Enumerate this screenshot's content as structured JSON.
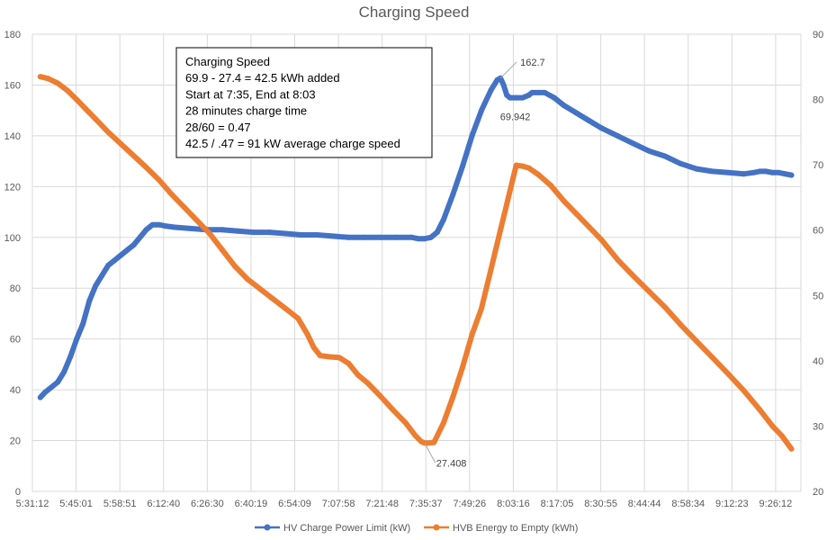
{
  "chart_data": {
    "type": "line",
    "title": "Charging Speed",
    "xlabel": "",
    "ylabel": "",
    "y2label": "",
    "x_tick_labels": [
      "5:31:12",
      "5:45:01",
      "5:58:51",
      "6:12:40",
      "6:26:30",
      "6:40:19",
      "6:54:09",
      "7:07:58",
      "7:21:48",
      "7:35:37",
      "7:49:26",
      "8:03:16",
      "8:17:05",
      "8:30:55",
      "8:44:44",
      "8:58:34",
      "9:12:23",
      "9:26:12"
    ],
    "x_tick_minutes": [
      0,
      13.82,
      27.65,
      41.47,
      55.3,
      69.12,
      82.95,
      96.77,
      110.6,
      124.42,
      138.23,
      152.07,
      165.88,
      179.72,
      193.53,
      207.37,
      221.18,
      235.0
    ],
    "xlim": [
      0,
      243
    ],
    "ylim": [
      0,
      180
    ],
    "y_ticks": [
      0,
      20,
      40,
      60,
      80,
      100,
      120,
      140,
      160,
      180
    ],
    "y2lim": [
      20,
      90
    ],
    "y2_ticks": [
      20,
      30,
      40,
      50,
      60,
      70,
      80,
      90
    ],
    "grid": true,
    "legend_position": "bottom",
    "series": [
      {
        "name": "HV Charge Power Limit (kW)",
        "axis": "left",
        "color": "#4472C4",
        "x": [
          2.5,
          4,
          6,
          8,
          10,
          12,
          14,
          16,
          18,
          20,
          22,
          24,
          26,
          28,
          30,
          32,
          34,
          36,
          37,
          38,
          39,
          40,
          42,
          45,
          50,
          55,
          60,
          65,
          70,
          75,
          80,
          85,
          90,
          95,
          100,
          105,
          110,
          115,
          120,
          122,
          124,
          126,
          128,
          130,
          133,
          136,
          139,
          142,
          145,
          147,
          148,
          149,
          150,
          151,
          152,
          153,
          155,
          157,
          158,
          160,
          162,
          165,
          168,
          172,
          176,
          180,
          185,
          190,
          195,
          200,
          205,
          210,
          215,
          220,
          225,
          228,
          230,
          232,
          234,
          236,
          238,
          240
        ],
        "values": [
          37,
          39,
          41,
          43,
          47,
          53,
          60,
          66,
          75,
          81,
          85,
          89,
          91,
          93,
          95,
          97,
          100,
          103,
          104,
          105,
          105,
          105,
          104.5,
          104,
          103.5,
          103,
          103,
          102.5,
          102,
          102,
          101.5,
          101,
          101,
          100.5,
          100,
          100,
          100,
          100,
          100,
          99.5,
          99.5,
          100,
          102,
          107,
          117,
          128,
          140,
          150,
          158,
          162,
          162.7,
          160,
          156,
          155,
          155,
          155,
          155,
          156,
          157,
          157,
          157,
          155,
          152,
          149,
          146,
          143,
          140,
          137,
          134,
          132,
          129,
          127,
          126,
          125.5,
          125,
          125.5,
          126,
          126,
          125.5,
          125.5,
          125,
          124.5
        ]
      },
      {
        "name": "HVB Energy to Empty (kWh)",
        "axis": "right",
        "color": "#ED7D31",
        "x": [
          2.5,
          5,
          8,
          11,
          14,
          17,
          20,
          24,
          28,
          32,
          36,
          40,
          44,
          48,
          52,
          56,
          60,
          64,
          68,
          72,
          76,
          80,
          84,
          87,
          89,
          91,
          94,
          97,
          100,
          103,
          106,
          110,
          114,
          118,
          121,
          123,
          124,
          125,
          127,
          130,
          133,
          136,
          139,
          142,
          145,
          148,
          150,
          152,
          153,
          155,
          157,
          160,
          164,
          168,
          172,
          176,
          180,
          185,
          190,
          195,
          200,
          205,
          210,
          215,
          220,
          225,
          230,
          234,
          237,
          240
        ],
        "values": [
          83.5,
          83.2,
          82.5,
          81.4,
          80,
          78.5,
          77,
          75,
          73.2,
          71.4,
          69.6,
          67.7,
          65.5,
          63.5,
          61.5,
          59.5,
          57,
          54.5,
          52.5,
          51,
          49.5,
          48,
          46.5,
          44,
          42,
          40.8,
          40.6,
          40.5,
          39.6,
          37.8,
          36.6,
          34.6,
          32.5,
          30.5,
          28.6,
          27.6,
          27.4,
          27.4,
          27.5,
          30.5,
          34.5,
          39,
          44,
          48,
          54,
          60,
          64,
          68,
          69.942,
          69.8,
          69.5,
          68.5,
          66.8,
          64.5,
          62.5,
          60.5,
          58.5,
          55.5,
          53,
          50.6,
          48.2,
          45.5,
          43,
          40.5,
          38,
          35.4,
          32.5,
          30,
          28.5,
          26.5
        ]
      }
    ],
    "data_labels": [
      {
        "text": "162.7",
        "series": 0
      },
      {
        "text": "69.942",
        "series": 1
      },
      {
        "text": "27.408",
        "series": 1
      }
    ],
    "annotation_box": {
      "lines": [
        "Charging Speed",
        "69.9 - 27.4 = 42.5 kWh added",
        "Start at 7:35, End at 8:03",
        "28 minutes charge time",
        "28/60 = 0.47",
        "42.5 / .47 = 91 kW average charge speed"
      ]
    }
  }
}
